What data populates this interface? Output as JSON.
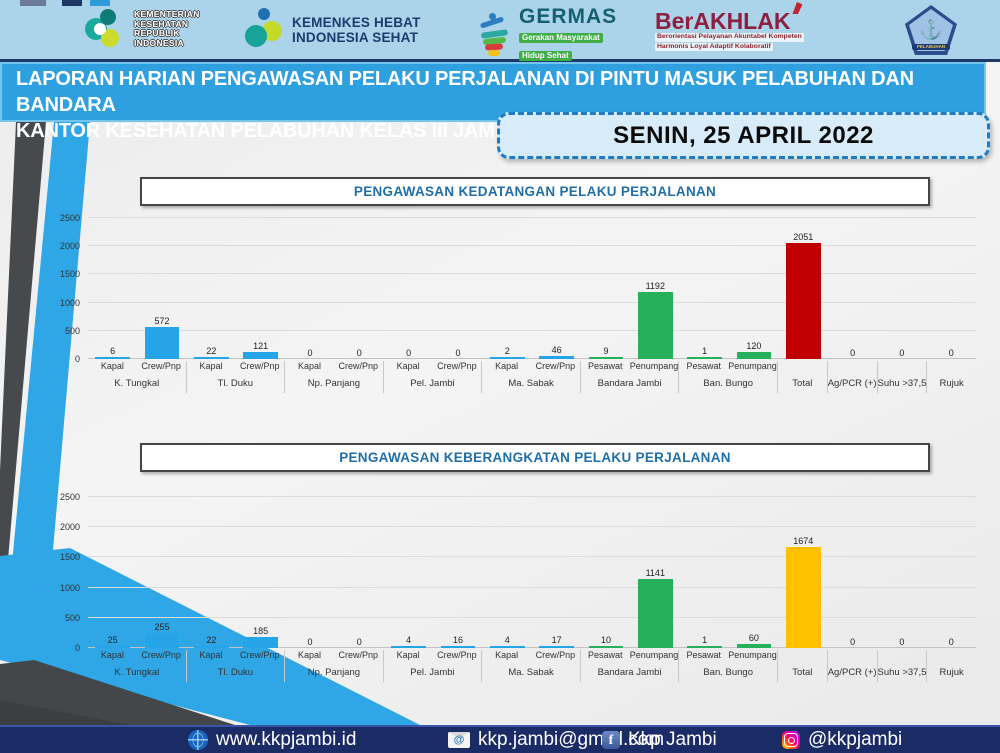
{
  "header": {
    "kemenkes": {
      "line1": "KEMENTERIAN",
      "line2": "KESEHATAN",
      "line3": "REPUBLIK",
      "line4": "INDONESIA"
    },
    "kemenkes_hebat": {
      "line1": "KEMENKES HEBAT",
      "line2": "INDONESIA SEHAT"
    },
    "germas": {
      "title": "GERMAS",
      "tagline1": "Gerakan Masyarakat",
      "tagline2": "Hidup Sehat"
    },
    "berakhlak": {
      "title": "BerAKHLAK",
      "sub1": "Berorientasi  Pelayanan  Akuntabel  Kompeten",
      "sub2": "Harmonis  Loyal  Adaptif  Kolaboratif"
    },
    "pelabuhan": {
      "label": "PELABUHAN"
    }
  },
  "banner": {
    "line1": "LAPORAN HARIAN PENGAWASAN PELAKU PERJALANAN DI PINTU MASUK PELABUHAN DAN BANDARA",
    "line2": "KANTOR KESEHATAN PELABUHAN KELAS III JAMBI"
  },
  "date_box": {
    "text": "SENIN, 25 APRIL 2022"
  },
  "palette": {
    "bar_blue": "#25A5E8",
    "bar_green": "#27B05C",
    "total_arrival_red": "#C00000",
    "total_departure_yellow": "#FFC000",
    "banner_blue": "#2E9FDF",
    "strip_light_blue": "#ABD3EA",
    "footer_navy": "#1B2B66",
    "stripe_blue": "#2FA6E6",
    "stripe_gray": "#474A4D"
  },
  "chart_data": [
    {
      "type": "bar",
      "title": "PENGAWASAN KEDATANGAN PELAKU PERJALANAN",
      "ylim": [
        0,
        2500
      ],
      "yticks": [
        0,
        500,
        1000,
        1500,
        2000,
        2500
      ],
      "grid": true,
      "legend": "none",
      "groups": [
        {
          "label": "K. Tungkal",
          "subs": [
            "Kapal",
            "Crew/Pnp"
          ]
        },
        {
          "label": "Tl. Duku",
          "subs": [
            "Kapal",
            "Crew/Pnp"
          ]
        },
        {
          "label": "Np. Panjang",
          "subs": [
            "Kapal",
            "Crew/Pnp"
          ]
        },
        {
          "label": "Pel. Jambi",
          "subs": [
            "Kapal",
            "Crew/Pnp"
          ]
        },
        {
          "label": "Ma. Sabak",
          "subs": [
            "Kapal",
            "Crew/Pnp"
          ]
        },
        {
          "label": "Bandara Jambi",
          "subs": [
            "Pesawat",
            "Penumpang"
          ]
        },
        {
          "label": "Ban. Bungo",
          "subs": [
            "Pesawat",
            "Penumpang"
          ]
        },
        {
          "label": "Total",
          "subs": []
        },
        {
          "label": "Ag/PCR (+)",
          "subs": []
        },
        {
          "label": "Suhu >37,5",
          "subs": []
        },
        {
          "label": "Rujuk",
          "subs": []
        }
      ],
      "categories": [
        "Kapal K. Tungkal",
        "Crew/Pnp K. Tungkal",
        "Kapal Tl. Duku",
        "Crew/Pnp Tl. Duku",
        "Kapal Np. Panjang",
        "Crew/Pnp Np. Panjang",
        "Kapal Pel. Jambi",
        "Crew/Pnp Pel. Jambi",
        "Kapal Ma. Sabak",
        "Crew/Pnp Ma. Sabak",
        "Pesawat Bandara Jambi",
        "Penumpang Bandara Jambi",
        "Pesawat Ban. Bungo",
        "Penumpang Ban. Bungo",
        "Total",
        "Ag/PCR (+)",
        "Suhu >37,5",
        "Rujuk"
      ],
      "values": [
        6,
        572,
        22,
        121,
        0,
        0,
        0,
        0,
        2,
        46,
        9,
        1192,
        1,
        120,
        2051,
        0,
        0,
        0
      ],
      "bar_colors": [
        "#25A5E8",
        "#25A5E8",
        "#25A5E8",
        "#25A5E8",
        "#25A5E8",
        "#25A5E8",
        "#25A5E8",
        "#25A5E8",
        "#25A5E8",
        "#25A5E8",
        "#27B05C",
        "#27B05C",
        "#27B05C",
        "#27B05C",
        "#C00000",
        "#999999",
        "#999999",
        "#999999"
      ]
    },
    {
      "type": "bar",
      "title": "PENGAWASAN KEBERANGKATAN PELAKU PERJALANAN",
      "ylim": [
        0,
        2500
      ],
      "yticks": [
        0,
        500,
        1000,
        1500,
        2000,
        2500
      ],
      "grid": true,
      "legend": "none",
      "groups": [
        {
          "label": "K. Tungkal",
          "subs": [
            "Kapal",
            "Crew/Pnp"
          ]
        },
        {
          "label": "Tl. Duku",
          "subs": [
            "Kapal",
            "Crew/Pnp"
          ]
        },
        {
          "label": "Np. Panjang",
          "subs": [
            "Kapal",
            "Crew/Pnp"
          ]
        },
        {
          "label": "Pel. Jambi",
          "subs": [
            "Kapal",
            "Crew/Pnp"
          ]
        },
        {
          "label": "Ma. Sabak",
          "subs": [
            "Kapal",
            "Crew/Pnp"
          ]
        },
        {
          "label": "Bandara Jambi",
          "subs": [
            "Pesawat",
            "Penumpang"
          ]
        },
        {
          "label": "Ban. Bungo",
          "subs": [
            "Pesawat",
            "Penumpang"
          ]
        },
        {
          "label": "Total",
          "subs": []
        },
        {
          "label": "Ag/PCR (+)",
          "subs": []
        },
        {
          "label": "Suhu >37,5",
          "subs": []
        },
        {
          "label": "Rujuk",
          "subs": []
        }
      ],
      "categories": [
        "Kapal K. Tungkal",
        "Crew/Pnp K. Tungkal",
        "Kapal Tl. Duku",
        "Crew/Pnp Tl. Duku",
        "Kapal Np. Panjang",
        "Crew/Pnp Np. Panjang",
        "Kapal Pel. Jambi",
        "Crew/Pnp Pel. Jambi",
        "Kapal Ma. Sabak",
        "Crew/Pnp Ma. Sabak",
        "Pesawat Bandara Jambi",
        "Penumpang Bandara Jambi",
        "Pesawat Ban. Bungo",
        "Penumpang Ban. Bungo",
        "Total",
        "Ag/PCR (+)",
        "Suhu >37,5",
        "Rujuk"
      ],
      "values": [
        25,
        255,
        22,
        185,
        0,
        0,
        4,
        16,
        4,
        17,
        10,
        1141,
        1,
        60,
        1674,
        0,
        0,
        0
      ],
      "bar_colors": [
        "#25A5E8",
        "#25A5E8",
        "#25A5E8",
        "#25A5E8",
        "#25A5E8",
        "#25A5E8",
        "#25A5E8",
        "#25A5E8",
        "#25A5E8",
        "#25A5E8",
        "#27B05C",
        "#27B05C",
        "#27B05C",
        "#27B05C",
        "#FFC000",
        "#999999",
        "#999999",
        "#999999"
      ]
    }
  ],
  "footer": {
    "items": [
      {
        "icon": "globe-icon",
        "text": "www.kkpjambi.id"
      },
      {
        "icon": "email-icon",
        "text": "kkp.jambi@gmail.com"
      },
      {
        "icon": "facebook-icon",
        "text": "Kkp Jambi"
      },
      {
        "icon": "instagram-icon",
        "text": "@kkpjambi"
      }
    ]
  }
}
